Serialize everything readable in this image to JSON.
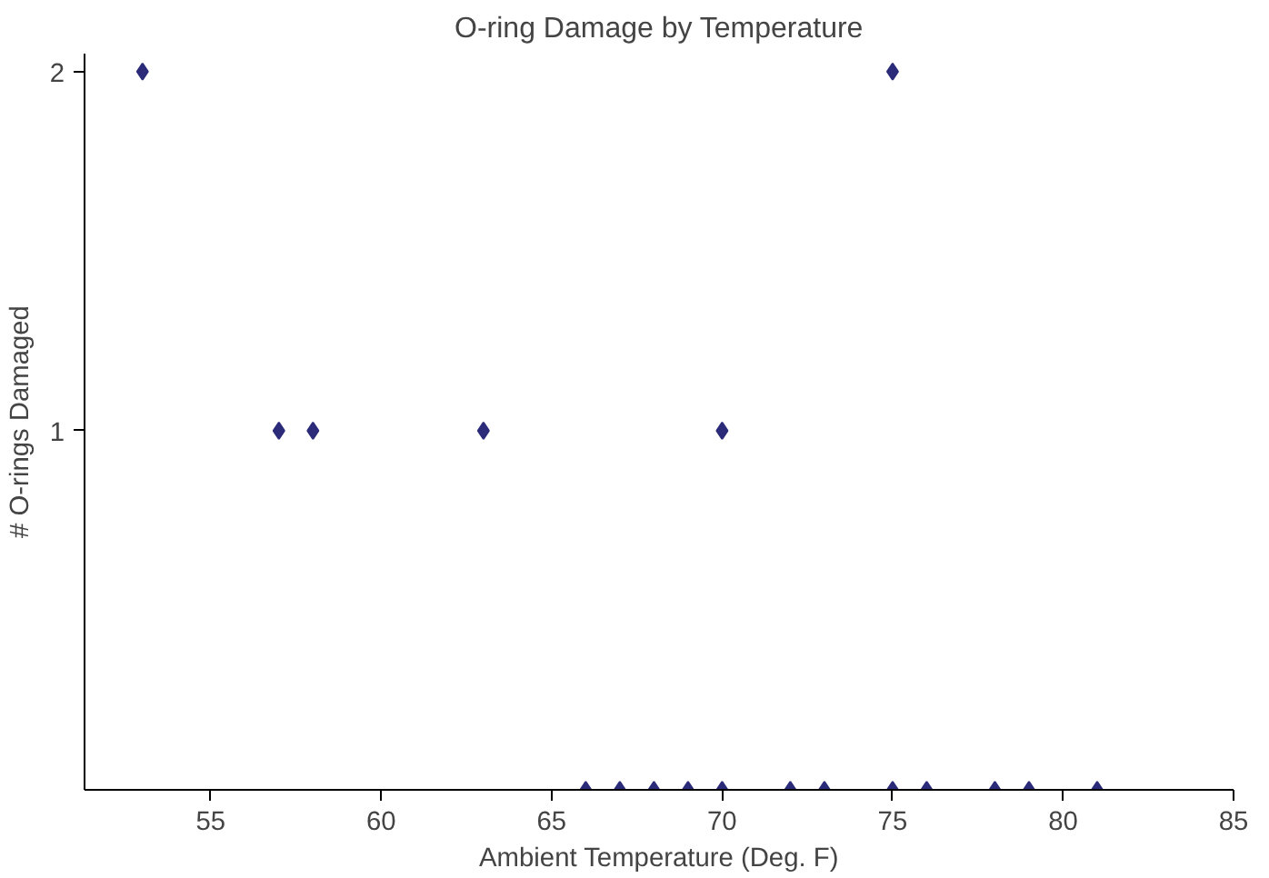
{
  "chart_data": {
    "type": "scatter",
    "title": "O-ring Damage by Temperature",
    "xlabel": "Ambient Temperature (Deg. F)",
    "ylabel": "# O-rings Damaged",
    "x": [
      53,
      57,
      58,
      63,
      70,
      75,
      66,
      67,
      68,
      69,
      70,
      72,
      73,
      75,
      76,
      78,
      79,
      81
    ],
    "series": [
      {
        "color": "#2b2b7a",
        "values": [
          2,
          1,
          1,
          1,
          1,
          2,
          0,
          0,
          0,
          0,
          0,
          0,
          0,
          0,
          0,
          0,
          0,
          0
        ]
      }
    ],
    "xlim": [
      51.3,
      85
    ],
    "ylim": [
      0,
      2.05
    ],
    "xticks": [
      55,
      60,
      65,
      70,
      75,
      80,
      85
    ],
    "yticks": [
      1,
      2
    ],
    "grid": false,
    "marker": "diamond"
  }
}
